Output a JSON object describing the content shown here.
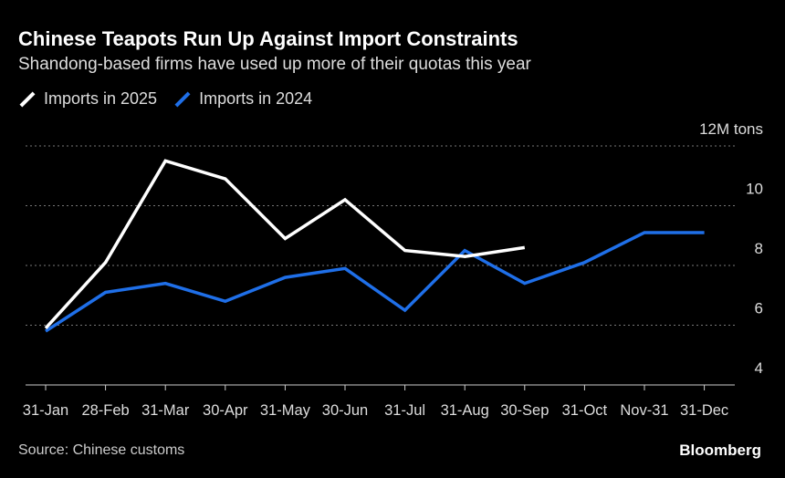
{
  "title": "Chinese Teapots Run Up Against Import Constraints",
  "subtitle": "Shandong-based firms have used up more of their quotas this year",
  "source": "Source: Chinese customs",
  "brand": "Bloomberg",
  "chart_data": {
    "type": "line",
    "categories": [
      "31-Jan",
      "28-Feb",
      "31-Mar",
      "30-Apr",
      "31-May",
      "30-Jun",
      "31-Jul",
      "31-Aug",
      "30-Sep",
      "31-Oct",
      "Nov-31",
      "31-Dec"
    ],
    "y_unit": "M tons",
    "y_ticks": [
      "12M tons",
      "10",
      "8",
      "6",
      "4"
    ],
    "y_tick_values": [
      12,
      10,
      8,
      6,
      4
    ],
    "ylim": [
      4,
      12
    ],
    "grid": true,
    "legend_placement": "top-left",
    "series": [
      {
        "name": "Imports in 2025",
        "color": "#ffffff",
        "values": [
          5.9,
          8.1,
          11.5,
          10.9,
          8.9,
          10.2,
          8.5,
          8.3,
          8.6,
          null,
          null,
          null
        ]
      },
      {
        "name": "Imports in 2024",
        "color": "#1f6fe8",
        "values": [
          5.8,
          7.1,
          7.4,
          6.8,
          7.6,
          7.9,
          6.5,
          8.5,
          7.4,
          8.1,
          9.1,
          9.1
        ]
      }
    ]
  }
}
